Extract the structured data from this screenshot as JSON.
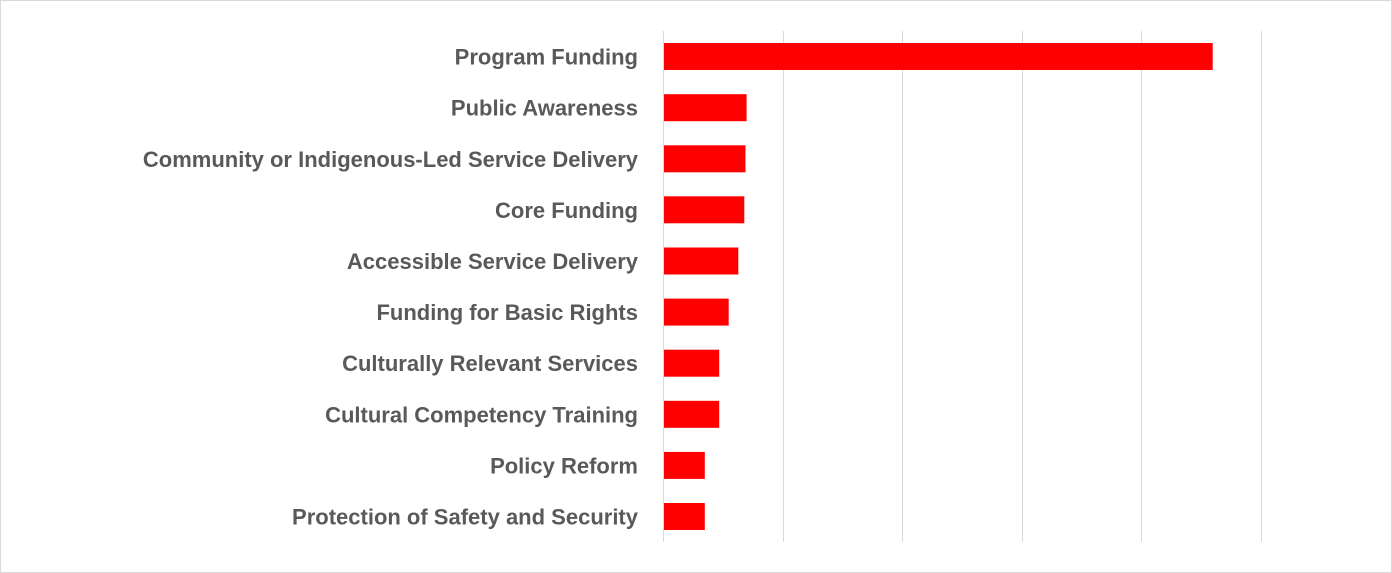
{
  "chart_data": {
    "type": "bar",
    "orientation": "horizontal",
    "categories": [
      "Program Funding",
      "Public Awareness",
      "Community or Indigenous-Led Service Delivery",
      "Core Funding",
      "Accessible Service Delivery",
      "Funding for Basic Rights",
      "Culturally Relevant Services",
      "Cultural Competency Training",
      "Policy Reform",
      "Protection of Safety and Security"
    ],
    "values": [
      46,
      7,
      6.9,
      6.8,
      6.3,
      5.5,
      4.7,
      4.7,
      3.5,
      3.5
    ],
    "xlim": [
      0,
      60
    ],
    "x_grid_step": 10,
    "grid": true,
    "x_tick_labels_visible": false,
    "bar_color": "#ff0000",
    "label_color": "#595959",
    "grid_color": "#d9d9d9"
  }
}
